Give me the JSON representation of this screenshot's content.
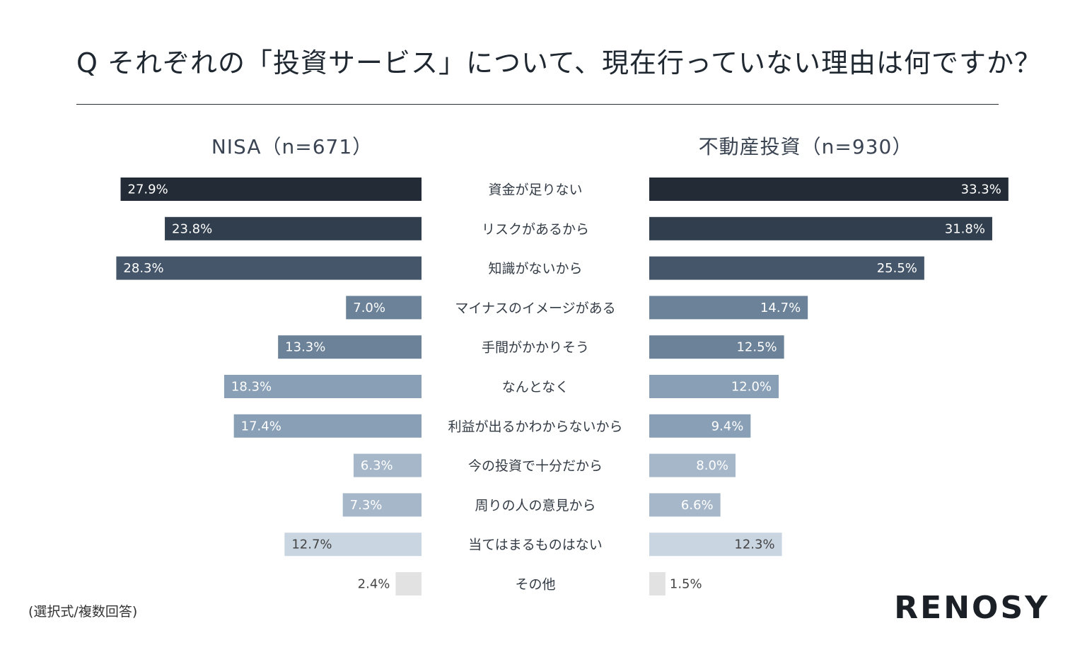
{
  "title": "Q それぞれの「投資サービス」について、現在行っていない理由は何ですか？",
  "note": "(選択式/複数回答)",
  "logo": "RENOSY",
  "chart_data": {
    "type": "bar",
    "orientation": "horizontal-butterfly",
    "categories": [
      "資金が足りない",
      "リスクがあるから",
      "知識がないから",
      "マイナスのイメージがある",
      "手間がかかりそう",
      "なんとなく",
      "利益が出るかわからないから",
      "今の投資で十分だから",
      "周りの人の意見から",
      "当てはまるものはない",
      "その他"
    ],
    "series": [
      {
        "name": "NISA（n=671）",
        "values": [
          27.9,
          23.8,
          28.3,
          7.0,
          13.3,
          18.3,
          17.4,
          6.3,
          7.3,
          12.7,
          2.4
        ]
      },
      {
        "name": "不動産投資（n=930）",
        "values": [
          33.3,
          31.8,
          25.5,
          14.7,
          12.5,
          12.0,
          9.4,
          8.0,
          6.6,
          12.3,
          1.5
        ]
      }
    ],
    "value_labels": {
      "NISA": [
        "27.9%",
        "23.8%",
        "28.3%",
        "7.0%",
        "13.3%",
        "18.3%",
        "17.4%",
        "6.3%",
        "7.3%",
        "12.7%",
        "2.4%"
      ],
      "不動産投資": [
        "33.3%",
        "31.8%",
        "25.5%",
        "14.7%",
        "12.5%",
        "12.0%",
        "9.4%",
        "8.0%",
        "6.6%",
        "12.3%",
        "1.5%"
      ]
    },
    "bar_colors": [
      "#222b36",
      "#313e4e",
      "#45566b",
      "#6b8298",
      "#6b8298",
      "#889fb6",
      "#889fb6",
      "#a5b7c9",
      "#a5b7c9",
      "#c9d5e1",
      "#e2e2e2"
    ],
    "label_colors": [
      "#ffffff",
      "#ffffff",
      "#ffffff",
      "#ffffff",
      "#ffffff",
      "#ffffff",
      "#ffffff",
      "#ffffff",
      "#ffffff",
      "#444444",
      "#444444"
    ],
    "xlim": [
      0,
      33.3
    ],
    "grid": false,
    "legend": "none"
  }
}
